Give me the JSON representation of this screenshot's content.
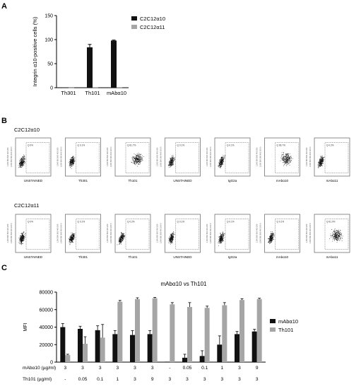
{
  "panels": {
    "a_letter": "A",
    "b_letter": "B",
    "c_letter": "C"
  },
  "colors": {
    "black": "#111111",
    "grey": "#a6a6a6",
    "axis": "#000000"
  },
  "chart_data": [
    {
      "type": "bar",
      "categories": [
        "Th301",
        "Th101",
        "mAbα10"
      ],
      "ylabel": "Integrin α10-positive cells (%)",
      "ylim": [
        0,
        150
      ],
      "yticks": [
        0,
        50,
        100,
        150
      ],
      "legend_position": "top-right",
      "series": [
        {
          "name": "C2C12α10",
          "color": "#111111",
          "values": [
            0.5,
            84,
            98
          ],
          "errors": [
            0,
            6,
            1
          ]
        },
        {
          "name": "C2C12α11",
          "color": "#a6a6a6",
          "values": [
            0.3,
            0.5,
            0.5
          ],
          "errors": [
            0,
            0,
            0
          ]
        }
      ]
    },
    {
      "type": "scatter",
      "rows": [
        {
          "label": "C2C12α10",
          "plots": [
            {
              "xlabel": "UNSTAINED",
              "gate": "Q 0%"
            },
            {
              "xlabel": "Th301",
              "gate": "Q 0.1%"
            },
            {
              "xlabel": "Th101",
              "gate": "Q 81.7%"
            },
            {
              "xlabel": "UNSTAINED",
              "gate": "Q 0.1%"
            },
            {
              "xlabel": "IgG2a",
              "gate": "Q 0.1%"
            },
            {
              "xlabel": "mAbα10",
              "gate": "Q 96.7%"
            },
            {
              "xlabel": "mAbα11",
              "gate": "Q 0.2%"
            }
          ]
        },
        {
          "label": "C2C12α11",
          "plots": [
            {
              "xlabel": "UNSTAINED",
              "gate": "Q 0%"
            },
            {
              "xlabel": "Th301",
              "gate": "Q 0.1%"
            },
            {
              "xlabel": "Th101",
              "gate": "Q 0.2%"
            },
            {
              "xlabel": "UNSTAINED",
              "gate": "Q 0.1%"
            },
            {
              "xlabel": "IgG2a",
              "gate": "Q 0.1%"
            },
            {
              "xlabel": "mAbα10",
              "gate": "Q 0.1%"
            },
            {
              "xlabel": "mAbα11",
              "gate": "Q 61.0%"
            }
          ]
        }
      ]
    },
    {
      "type": "bar",
      "title": "mAbα10 vs Th101",
      "ylabel": "MFI",
      "ylim": [
        0,
        80000
      ],
      "yticks": [
        0,
        20000,
        40000,
        60000,
        80000
      ],
      "legend_position": "right",
      "conditions": [
        {
          "label": "mAbα10 (µg/ml)",
          "values": [
            "3",
            "3",
            "3",
            "3",
            "3",
            "3",
            "-",
            "0.05",
            "0.1",
            "1",
            "3",
            "9"
          ]
        },
        {
          "label": "Th101 (µg/ml)",
          "values": [
            "-",
            "0.05",
            "0.1",
            "1",
            "3",
            "9",
            "3",
            "3",
            "3",
            "3",
            "3",
            "3"
          ]
        }
      ],
      "series": [
        {
          "name": "mAbα10",
          "color": "#111111",
          "values": [
            40000,
            38000,
            36500,
            32000,
            31000,
            32000,
            500,
            5000,
            7000,
            20000,
            32000,
            35000
          ],
          "errors": [
            4000,
            3000,
            5000,
            4000,
            5000,
            4000,
            0,
            4000,
            6000,
            10000,
            3000,
            2500
          ]
        },
        {
          "name": "Th101",
          "color": "#a6a6a6",
          "values": [
            8000,
            21000,
            28000,
            69000,
            72000,
            73000,
            66000,
            63000,
            62000,
            65000,
            71000,
            72000
          ],
          "errors": [
            1000,
            8000,
            15000,
            1500,
            1500,
            1000,
            2000,
            5000,
            2000,
            3000,
            1500,
            1000
          ]
        }
      ]
    }
  ]
}
